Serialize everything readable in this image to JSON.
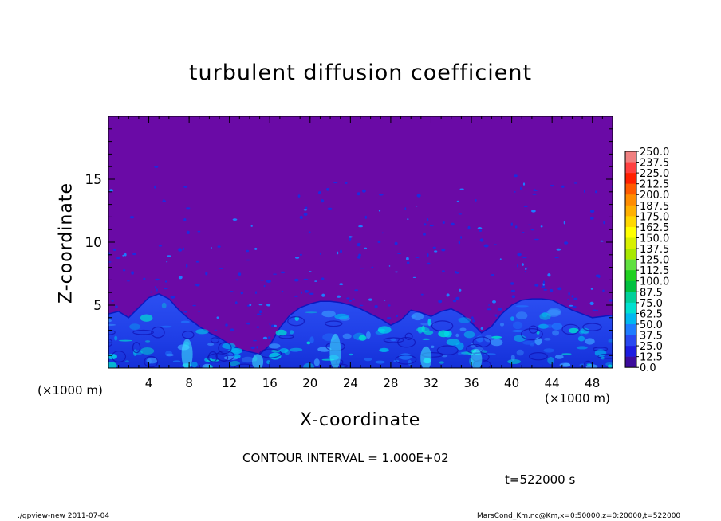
{
  "chart_data": {
    "type": "heatmap",
    "title": "turbulent diffusion coefficient",
    "xlabel": "X-coordinate",
    "ylabel": "Z-coordinate",
    "x_scale_label": "(×1000 m)",
    "x_scale_label_right": "(×1000 m)",
    "xlim": [
      0,
      50
    ],
    "ylim": [
      0,
      20
    ],
    "x_ticks": [
      "4",
      "8",
      "12",
      "16",
      "20",
      "24",
      "28",
      "32",
      "36",
      "40",
      "44",
      "48"
    ],
    "y_ticks": [
      "5",
      "10",
      "15"
    ],
    "colorbar": {
      "levels": [
        "250.0",
        "237.5",
        "225.0",
        "212.5",
        "200.0",
        "187.5",
        "175.0",
        "162.5",
        "150.0",
        "137.5",
        "125.0",
        "112.5",
        "100.0",
        "87.5",
        "75.0",
        "62.5",
        "50.0",
        "37.5",
        "25.0",
        "12.5",
        "0.0"
      ],
      "colors": [
        "#f08080",
        "#ff4040",
        "#ff2000",
        "#ff5a00",
        "#ff8c00",
        "#ffb000",
        "#ffd700",
        "#ffff00",
        "#d8f000",
        "#a8e800",
        "#60e040",
        "#20d020",
        "#00c040",
        "#00d09a",
        "#00e0d0",
        "#00b8f0",
        "#1e7cff",
        "#2848f0",
        "#1c1ce0",
        "#3c0c9c"
      ],
      "background": "#6a0aa6"
    },
    "profile_top": [
      [
        0,
        4.3
      ],
      [
        1,
        4.5
      ],
      [
        2,
        4.0
      ],
      [
        3,
        4.8
      ],
      [
        4,
        5.6
      ],
      [
        5,
        5.9
      ],
      [
        6,
        5.5
      ],
      [
        7,
        4.6
      ],
      [
        8,
        3.9
      ],
      [
        9,
        3.3
      ],
      [
        10,
        2.8
      ],
      [
        11,
        2.4
      ],
      [
        12,
        1.9
      ],
      [
        13,
        1.5
      ],
      [
        14,
        1.3
      ],
      [
        15,
        1.1
      ],
      [
        16,
        1.8
      ],
      [
        17,
        3.2
      ],
      [
        18,
        4.2
      ],
      [
        19,
        4.8
      ],
      [
        20,
        5.1
      ],
      [
        21,
        5.3
      ],
      [
        22,
        5.3
      ],
      [
        23,
        5.2
      ],
      [
        24,
        5.0
      ],
      [
        25,
        4.7
      ],
      [
        26,
        4.3
      ],
      [
        27,
        3.9
      ],
      [
        28,
        3.4
      ],
      [
        29,
        3.8
      ],
      [
        30,
        4.6
      ],
      [
        31,
        4.4
      ],
      [
        32,
        4.1
      ],
      [
        33,
        4.5
      ],
      [
        34,
        4.7
      ],
      [
        35,
        4.3
      ],
      [
        36,
        3.6
      ],
      [
        37,
        2.8
      ],
      [
        38,
        3.3
      ],
      [
        39,
        4.3
      ],
      [
        40,
        5.0
      ],
      [
        41,
        5.4
      ],
      [
        42,
        5.5
      ],
      [
        43,
        5.5
      ],
      [
        44,
        5.4
      ],
      [
        45,
        5.0
      ],
      [
        46,
        4.6
      ],
      [
        47,
        4.3
      ],
      [
        48,
        4.0
      ],
      [
        49,
        4.1
      ],
      [
        50,
        4.2
      ]
    ],
    "contour_interval": "CONTOUR INTERVAL = 1.000E+02",
    "time": "t=522000 s"
  },
  "footer": {
    "left": "./gpview-new   2011-07-04",
    "right": "MarsCond_Km.nc@Km,x=0:50000,z=0:20000,t=522000"
  }
}
